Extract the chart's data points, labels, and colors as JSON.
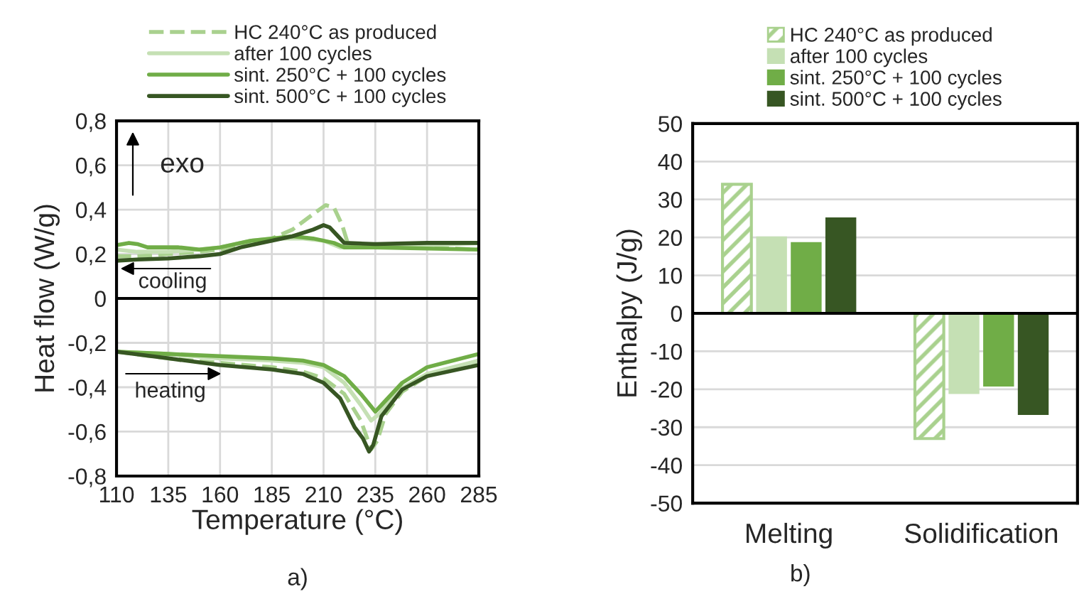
{
  "chart_data": [
    {
      "type": "line",
      "xlabel": "Temperature (°C)",
      "ylabel": "Heat flow (W/g)",
      "xlim": [
        110,
        285
      ],
      "xticks": [
        110,
        135,
        160,
        185,
        210,
        235,
        260,
        285
      ],
      "ylim": [
        -0.8,
        0.8
      ],
      "yticks": [
        {
          "value": -0.8,
          "label": "-0,8"
        },
        {
          "value": -0.6,
          "label": "-0,6"
        },
        {
          "value": -0.4,
          "label": "-0,4"
        },
        {
          "value": -0.2,
          "label": "-0,2"
        },
        {
          "value": 0,
          "label": "0"
        },
        {
          "value": 0.2,
          "label": "0,2"
        },
        {
          "value": 0.4,
          "label": "0,4"
        },
        {
          "value": 0.6,
          "label": "0,6"
        },
        {
          "value": 0.8,
          "label": "0,8"
        }
      ],
      "grid": true,
      "legend": "top",
      "marker": "none",
      "ref_lines": [
        {
          "axis": "y",
          "value": 0,
          "color": "#000000"
        }
      ],
      "annotations": [
        "exo",
        "cooling",
        "heating",
        "a)"
      ],
      "series": [
        {
          "name": "HC 240°C as produced",
          "color": "#a9d18e",
          "line_style": "dashed",
          "x": [
            110,
            135,
            160,
            185,
            200,
            210,
            220,
            228,
            233,
            236,
            240,
            248,
            260,
            285
          ],
          "values": [
            -0.24,
            -0.27,
            -0.29,
            -0.31,
            -0.33,
            -0.36,
            -0.43,
            -0.55,
            -0.68,
            -0.64,
            -0.52,
            -0.42,
            -0.35,
            -0.28
          ]
        },
        {
          "color": "#a9d18e",
          "line_style": "dashed",
          "x": [
            110,
            120,
            135,
            150,
            160,
            175,
            185,
            195,
            205,
            211,
            215,
            219,
            222,
            235,
            260,
            285
          ],
          "values": [
            0.19,
            0.19,
            0.2,
            0.21,
            0.22,
            0.25,
            0.27,
            0.31,
            0.38,
            0.42,
            0.41,
            0.33,
            0.24,
            0.23,
            0.23,
            0.22
          ]
        },
        {
          "name": "after 100 cycles",
          "color": "#c5e0b4",
          "line_style": "solid",
          "x": [
            110,
            135,
            160,
            185,
            200,
            210,
            220,
            228,
            233,
            237,
            245,
            260,
            285
          ],
          "values": [
            -0.24,
            -0.25,
            -0.27,
            -0.28,
            -0.29,
            -0.31,
            -0.38,
            -0.48,
            -0.55,
            -0.52,
            -0.42,
            -0.34,
            -0.28
          ]
        },
        {
          "color": "#c5e0b4",
          "line_style": "solid",
          "x": [
            110,
            120,
            135,
            150,
            160,
            175,
            185,
            200,
            210,
            218,
            235,
            260,
            285
          ],
          "values": [
            0.22,
            0.21,
            0.21,
            0.22,
            0.23,
            0.26,
            0.27,
            0.27,
            0.26,
            0.23,
            0.23,
            0.24,
            0.25
          ]
        },
        {
          "name": "sint. 250°C + 100 cycles",
          "color": "#70ad47",
          "line_style": "solid",
          "x": [
            110,
            135,
            160,
            185,
            200,
            210,
            220,
            228,
            235,
            240,
            248,
            260,
            285
          ],
          "values": [
            -0.24,
            -0.25,
            -0.26,
            -0.27,
            -0.28,
            -0.3,
            -0.35,
            -0.43,
            -0.51,
            -0.46,
            -0.38,
            -0.31,
            -0.25
          ]
        },
        {
          "color": "#70ad47",
          "line_style": "solid",
          "x": [
            110,
            116,
            120,
            125,
            140,
            150,
            160,
            175,
            185,
            195,
            205,
            215,
            220,
            235,
            260,
            285
          ],
          "values": [
            0.24,
            0.25,
            0.245,
            0.23,
            0.23,
            0.22,
            0.23,
            0.26,
            0.27,
            0.28,
            0.27,
            0.25,
            0.23,
            0.23,
            0.225,
            0.22
          ]
        },
        {
          "name": "sint. 500°C + 100 cycles",
          "color": "#375623",
          "line_style": "solid",
          "x": [
            110,
            135,
            160,
            185,
            200,
            210,
            218,
            225,
            229,
            232,
            234,
            238,
            248,
            260,
            285
          ],
          "values": [
            -0.24,
            -0.27,
            -0.3,
            -0.32,
            -0.34,
            -0.38,
            -0.45,
            -0.58,
            -0.63,
            -0.69,
            -0.66,
            -0.53,
            -0.41,
            -0.35,
            -0.3
          ]
        },
        {
          "color": "#375623",
          "line_style": "solid",
          "x": [
            110,
            120,
            135,
            150,
            160,
            170,
            185,
            195,
            205,
            210,
            213,
            217,
            220,
            235,
            260,
            285
          ],
          "values": [
            0.17,
            0.175,
            0.18,
            0.19,
            0.2,
            0.23,
            0.26,
            0.28,
            0.31,
            0.33,
            0.32,
            0.28,
            0.25,
            0.245,
            0.25,
            0.25
          ]
        }
      ]
    },
    {
      "type": "bar",
      "ylabel": "Enthalpy (J/g)",
      "categories": [
        "Melting",
        "Solidification"
      ],
      "ylim": [
        -50,
        50
      ],
      "yticks": [
        -50,
        -40,
        -30,
        -20,
        -10,
        0,
        10,
        20,
        30,
        40,
        50
      ],
      "grid": "y",
      "legend": "top",
      "ref_lines": [
        {
          "axis": "y",
          "value": 0,
          "color": "#000000"
        }
      ],
      "annotations": [
        "b)"
      ],
      "series": [
        {
          "name": "HC 240°C as produced",
          "color": "#a9d18e",
          "line_style": "dashed",
          "values": [
            34,
            -33
          ]
        },
        {
          "name": "after 100 cycles",
          "color": "#c5e0b4",
          "values": [
            20,
            -21
          ]
        },
        {
          "name": "sint. 250°C + 100 cycles",
          "color": "#70ad47",
          "values": [
            18.5,
            -19
          ]
        },
        {
          "name": "sint. 500°C + 100 cycles",
          "color": "#375623",
          "values": [
            25,
            -26.5
          ]
        }
      ]
    }
  ]
}
